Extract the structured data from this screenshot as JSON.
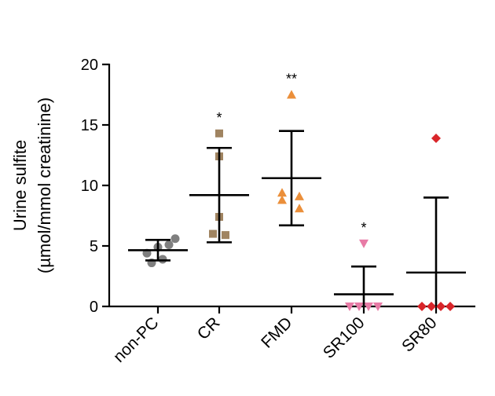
{
  "chart_data": {
    "type": "scatter",
    "ylabel": "Urine sulfite",
    "ylabel_line2": "(µmol/mmol creatinine)",
    "ylim": [
      0,
      20
    ],
    "yticks": [
      0,
      5,
      10,
      15,
      20
    ],
    "categories": [
      "non-PC",
      "CR",
      "FMD",
      "SR100",
      "SR80"
    ],
    "groups": [
      {
        "category": "non-PC",
        "marker": "circle",
        "color": "#7f7f7f",
        "points": [
          4.4,
          4.9,
          5.1,
          5.6,
          3.6,
          3.9
        ],
        "mean": 4.65,
        "error_low": 3.8,
        "error_high": 5.5,
        "annotation": ""
      },
      {
        "category": "CR",
        "marker": "square",
        "color": "#a08461",
        "points": [
          14.3,
          12.4,
          7.4,
          6.0,
          5.9
        ],
        "mean": 9.2,
        "error_low": 5.3,
        "error_high": 13.1,
        "annotation": "*"
      },
      {
        "category": "FMD",
        "marker": "triangle-up",
        "color": "#eb8f3a",
        "points": [
          17.5,
          9.4,
          9.1,
          8.8,
          8.1
        ],
        "mean": 10.6,
        "error_low": 6.7,
        "error_high": 14.5,
        "annotation": "**"
      },
      {
        "category": "SR100",
        "marker": "triangle-down",
        "color": "#e87ba6",
        "points": [
          5.2,
          0,
          0,
          0,
          0
        ],
        "mean": 1.0,
        "error_low": 0,
        "error_high": 3.3,
        "annotation": "*"
      },
      {
        "category": "SR80",
        "marker": "diamond",
        "color": "#d9252a",
        "points": [
          13.9,
          0,
          0,
          0,
          0
        ],
        "mean": 2.8,
        "error_low": 0,
        "error_high": 9.0,
        "annotation": ""
      }
    ]
  }
}
